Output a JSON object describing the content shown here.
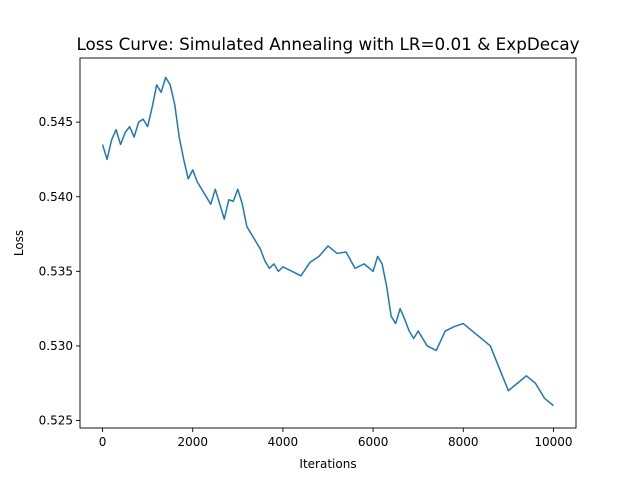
{
  "chart_data": {
    "type": "line",
    "title": "Loss Curve: Simulated Annealing with LR=0.01 & ExpDecay",
    "xlabel": "Iterations",
    "ylabel": "Loss",
    "xlim": [
      -500,
      10500
    ],
    "ylim": [
      0.5245,
      0.5493
    ],
    "xticks": [
      0,
      2000,
      4000,
      6000,
      8000,
      10000
    ],
    "xtick_labels": [
      "0",
      "2000",
      "4000",
      "6000",
      "8000",
      "10000"
    ],
    "yticks": [
      0.525,
      0.53,
      0.535,
      0.54,
      0.545
    ],
    "ytick_labels": [
      "0.525",
      "0.530",
      "0.535",
      "0.540",
      "0.545"
    ],
    "grid": false,
    "series": [
      {
        "color": "#1f77b4",
        "x": [
          0,
          100,
          200,
          300,
          400,
          500,
          600,
          700,
          800,
          900,
          1000,
          1100,
          1200,
          1300,
          1400,
          1500,
          1600,
          1700,
          1800,
          1900,
          2000,
          2100,
          2200,
          2300,
          2400,
          2500,
          2600,
          2700,
          2800,
          2900,
          3000,
          3100,
          3200,
          3300,
          3400,
          3500,
          3600,
          3700,
          3800,
          3900,
          4000,
          4200,
          4400,
          4600,
          4800,
          5000,
          5200,
          5400,
          5600,
          5800,
          6000,
          6100,
          6200,
          6300,
          6400,
          6500,
          6600,
          6700,
          6800,
          6900,
          7000,
          7200,
          7400,
          7600,
          7800,
          8000,
          8200,
          8400,
          8600,
          8800,
          9000,
          9200,
          9400,
          9600,
          9800,
          10000
        ],
        "y": [
          0.5435,
          0.5425,
          0.5438,
          0.5445,
          0.5435,
          0.5443,
          0.5447,
          0.544,
          0.545,
          0.5452,
          0.5447,
          0.546,
          0.5475,
          0.547,
          0.548,
          0.5475,
          0.5462,
          0.544,
          0.5425,
          0.5412,
          0.5418,
          0.541,
          0.5405,
          0.54,
          0.5395,
          0.5405,
          0.5395,
          0.5385,
          0.5398,
          0.5397,
          0.5405,
          0.5395,
          0.538,
          0.5375,
          0.537,
          0.5365,
          0.5357,
          0.5352,
          0.5355,
          0.535,
          0.5353,
          0.535,
          0.5347,
          0.5356,
          0.536,
          0.5367,
          0.5362,
          0.5363,
          0.5352,
          0.5355,
          0.535,
          0.536,
          0.5355,
          0.534,
          0.532,
          0.5315,
          0.5325,
          0.5318,
          0.531,
          0.5305,
          0.531,
          0.53,
          0.5297,
          0.531,
          0.5313,
          0.5315,
          0.531,
          0.5305,
          0.53,
          0.5285,
          0.527,
          0.5275,
          0.528,
          0.5275,
          0.5265,
          0.526
        ]
      }
    ]
  }
}
